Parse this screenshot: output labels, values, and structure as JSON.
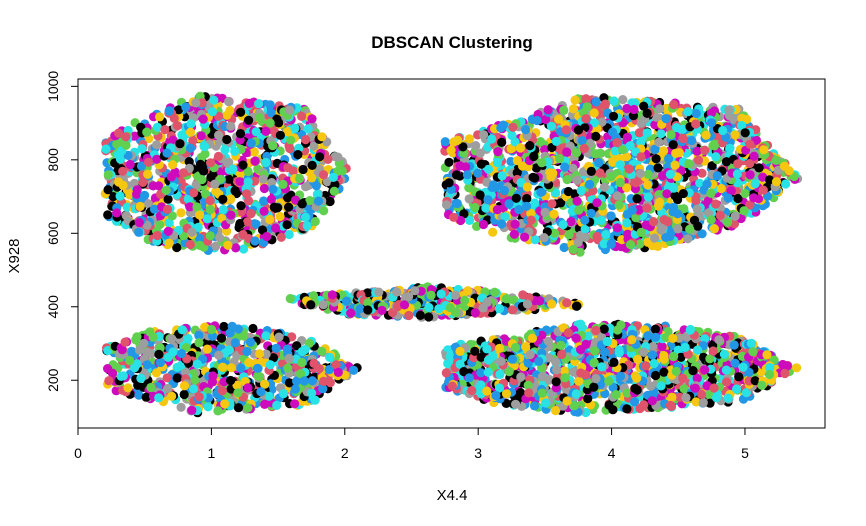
{
  "chart_data": {
    "type": "scatter",
    "title": "DBSCAN Clustering",
    "xlabel": "X4.4",
    "ylabel": "X928",
    "xlim": [
      0,
      5.6
    ],
    "ylim": [
      70,
      1020
    ],
    "xticks": [
      "0",
      "1",
      "2",
      "3",
      "4",
      "5"
    ],
    "yticks": [
      "200",
      "400",
      "600",
      "800",
      "1000"
    ],
    "grid": false,
    "legend": "none",
    "point_colors": [
      "#000000",
      "#DF536B",
      "#61D04F",
      "#2297E6",
      "#28E2E5",
      "#CD0BBC",
      "#F5C710",
      "#9E9E9E"
    ],
    "clusters": [
      {
        "hull": [
          [
            0.2,
            650
          ],
          [
            0.2,
            850
          ],
          [
            0.55,
            930
          ],
          [
            0.9,
            975
          ],
          [
            1.35,
            960
          ],
          [
            1.7,
            940
          ],
          [
            2.05,
            760
          ],
          [
            1.75,
            610
          ],
          [
            1.3,
            555
          ],
          [
            0.9,
            545
          ],
          [
            0.5,
            580
          ]
        ],
        "point_count": 1100
      },
      {
        "hull": [
          [
            2.75,
            650
          ],
          [
            2.75,
            850
          ],
          [
            3.4,
            920
          ],
          [
            3.75,
            975
          ],
          [
            4.3,
            960
          ],
          [
            4.95,
            940
          ],
          [
            5.4,
            750
          ],
          [
            5.0,
            630
          ],
          [
            4.4,
            565
          ],
          [
            3.8,
            545
          ],
          [
            3.2,
            590
          ]
        ],
        "point_count": 1700
      },
      {
        "hull": [
          [
            1.5,
            420
          ],
          [
            2.0,
            440
          ],
          [
            2.6,
            455
          ],
          [
            3.2,
            440
          ],
          [
            3.85,
            405
          ],
          [
            3.2,
            385
          ],
          [
            2.6,
            370
          ],
          [
            2.0,
            380
          ]
        ],
        "point_count": 450
      },
      {
        "hull": [
          [
            0.2,
            180
          ],
          [
            0.2,
            290
          ],
          [
            0.5,
            330
          ],
          [
            0.9,
            355
          ],
          [
            1.4,
            340
          ],
          [
            1.75,
            310
          ],
          [
            2.1,
            235
          ],
          [
            1.75,
            135
          ],
          [
            1.3,
            120
          ],
          [
            0.9,
            110
          ],
          [
            0.5,
            150
          ]
        ],
        "point_count": 750
      },
      {
        "hull": [
          [
            2.75,
            180
          ],
          [
            2.75,
            290
          ],
          [
            3.2,
            320
          ],
          [
            3.8,
            355
          ],
          [
            4.4,
            350
          ],
          [
            4.95,
            320
          ],
          [
            5.4,
            235
          ],
          [
            5.0,
            145
          ],
          [
            4.4,
            125
          ],
          [
            3.8,
            110
          ],
          [
            3.2,
            130
          ]
        ],
        "point_count": 1300
      }
    ]
  }
}
